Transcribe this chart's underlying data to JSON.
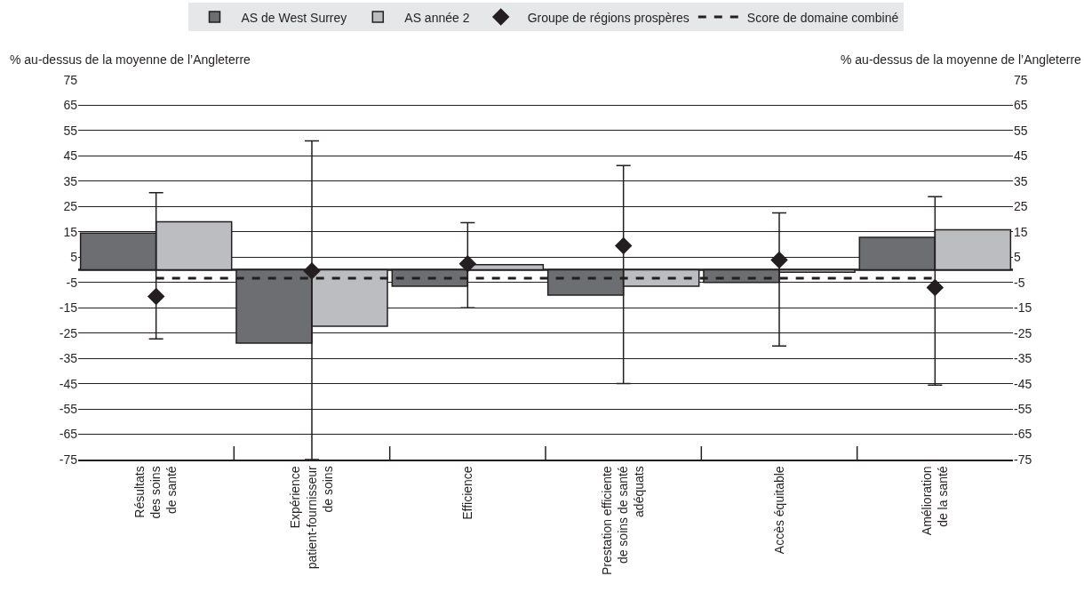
{
  "chart_data": {
    "type": "bar",
    "ylabel": "% au-dessus de la moyenne de l’Angleterre",
    "y2label": "% au-dessus de la moyenne de l’Angleterre",
    "categories": [
      "Résultats\ndes soins\nde santé",
      "Expérience\npatient-fournisseur\nde soins",
      "Efficience",
      "Prestation efficiente\nde soins de santé\nadéquats",
      "Accès équitable",
      "Amélioration\nde la santé"
    ],
    "series": [
      {
        "name": "AS de West Surrey",
        "color": "#6d6e71",
        "values": [
          14.5,
          -29,
          -6.5,
          -10,
          -5,
          12.8
        ]
      },
      {
        "name": "AS année 2",
        "color": "#bcbdc0",
        "values": [
          19,
          -22.3,
          2,
          -6.5,
          -1,
          15.8
        ]
      },
      {
        "name": "Groupe de régions prospères",
        "type": "scatter",
        "marker": "diamond",
        "color": "#231f20",
        "values": [
          -10.5,
          -0.4,
          2.4,
          9.5,
          3.9,
          -7
        ],
        "errors": [
          [
            -27.3,
            30.5
          ],
          [
            -75,
            50.9
          ],
          [
            -15,
            18.6
          ],
          [
            -45,
            41.2
          ],
          [
            -30.1,
            22.5
          ],
          [
            -45.6,
            28.9
          ]
        ]
      },
      {
        "name": "Score de domaine combiné",
        "type": "line",
        "line_style": "dashed",
        "marker": "none",
        "color": "#231f20",
        "values": [
          -3.3,
          -3.3,
          -3.3,
          -3.3,
          -3.3,
          -3.3
        ]
      }
    ],
    "ylim": [
      -75,
      75
    ],
    "yticks": [
      -75,
      -65,
      -55,
      -45,
      -35,
      -25,
      -15,
      -5,
      5,
      15,
      25,
      35,
      45,
      55,
      65,
      75
    ],
    "y2lim": [
      -75,
      75
    ],
    "y2ticks": [
      -75,
      -65,
      -55,
      -45,
      -35,
      -25,
      -15,
      -5,
      5,
      15,
      25,
      35,
      45,
      55,
      65,
      75
    ],
    "grid": "y",
    "legend": "top"
  }
}
